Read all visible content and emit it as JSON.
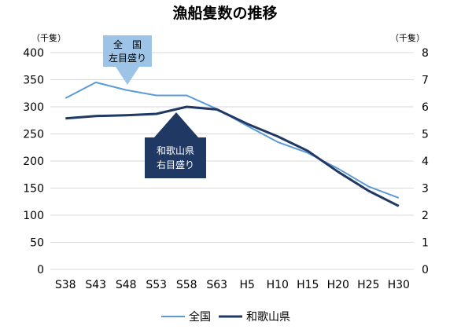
{
  "chart_data": {
    "type": "line",
    "title": "漁船隻数の推移",
    "categories": [
      "S38",
      "S43",
      "S48",
      "S53",
      "S58",
      "S63",
      "H5",
      "H10",
      "H15",
      "H20",
      "H25",
      "H30"
    ],
    "y_left": {
      "unit": "（千隻）",
      "ylim": [
        0,
        400
      ],
      "ticks": [
        0,
        50,
        100,
        150,
        200,
        250,
        300,
        350,
        400
      ]
    },
    "y_right": {
      "unit": "（千隻）",
      "ylim": [
        0,
        8
      ],
      "ticks": [
        0,
        1,
        2,
        3,
        4,
        5,
        6,
        7,
        8
      ]
    },
    "grid": true,
    "legend_position": "bottom",
    "series": [
      {
        "name": "全国",
        "axis": "left",
        "color": "#5b9bd5",
        "values": [
          316,
          345,
          331,
          321,
          321,
          296,
          265,
          235,
          215,
          186,
          153,
          132
        ]
      },
      {
        "name": "和歌山県",
        "axis": "right",
        "color": "#1f3864",
        "values": [
          5.57,
          5.66,
          5.69,
          5.74,
          6.0,
          5.9,
          5.37,
          4.91,
          4.37,
          3.6,
          2.9,
          2.34
        ]
      }
    ],
    "annotations": [
      {
        "line1": "全　国",
        "line2": "左目盛り",
        "series": "全国",
        "color": "#9dc3e6"
      },
      {
        "line1": "和歌山県",
        "line2": "右目盛り",
        "series": "和歌山県",
        "color": "#1f3864"
      }
    ]
  }
}
